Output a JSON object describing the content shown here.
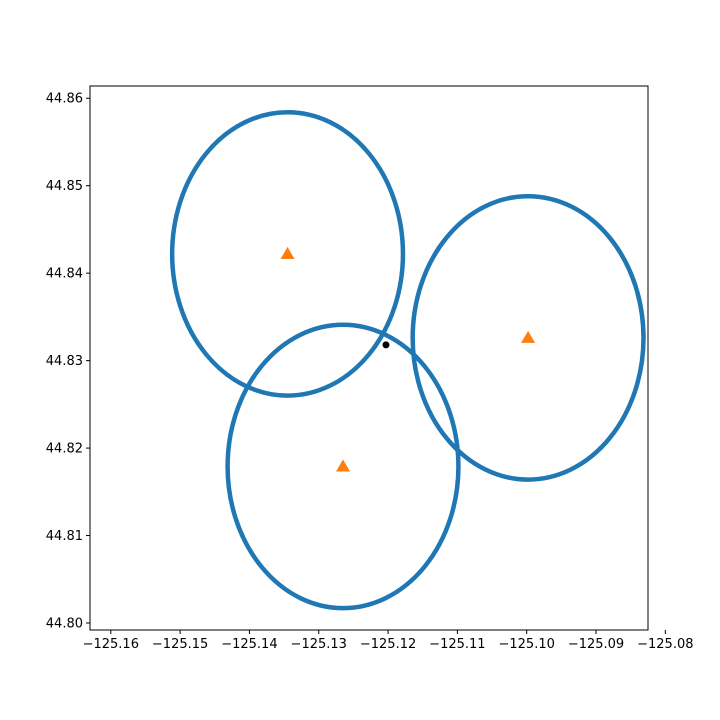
{
  "chart_data": {
    "type": "scatter",
    "title": "",
    "xlabel": "",
    "ylabel": "",
    "xlim": [
      -125.163,
      -125.0825
    ],
    "ylim": [
      44.7992,
      44.8614
    ],
    "grid": false,
    "x_ticks": [
      -125.16,
      -125.15,
      -125.14,
      -125.13,
      -125.12,
      -125.11,
      -125.1,
      -125.09,
      -125.08
    ],
    "x_tick_labels": [
      "−125.16",
      "−125.15",
      "−125.14",
      "−125.13",
      "−125.12",
      "−125.11",
      "−125.10",
      "−125.09",
      "−125.08"
    ],
    "y_ticks": [
      44.8,
      44.81,
      44.82,
      44.83,
      44.84,
      44.85,
      44.86
    ],
    "y_tick_labels": [
      "44.80",
      "44.81",
      "44.82",
      "44.83",
      "44.84",
      "44.85",
      "44.86"
    ],
    "circles": [
      {
        "cx": -125.1345,
        "cy": 44.8422,
        "rx": 0.01665,
        "ry": 0.0162
      },
      {
        "cx": -125.0998,
        "cy": 44.8326,
        "rx": 0.01665,
        "ry": 0.0162
      },
      {
        "cx": -125.1265,
        "cy": 44.8179,
        "rx": 0.01665,
        "ry": 0.0162
      }
    ],
    "stations": [
      {
        "x": -125.1345,
        "y": 44.8422
      },
      {
        "x": -125.0998,
        "y": 44.8326
      },
      {
        "x": -125.1265,
        "y": 44.8179
      }
    ],
    "estimate": {
      "x": -125.1203,
      "y": 44.8318
    },
    "colors": {
      "circle": "#1f77b4",
      "station": "#ff7f0e",
      "estimate": "#000000",
      "axes": "#000000"
    }
  }
}
